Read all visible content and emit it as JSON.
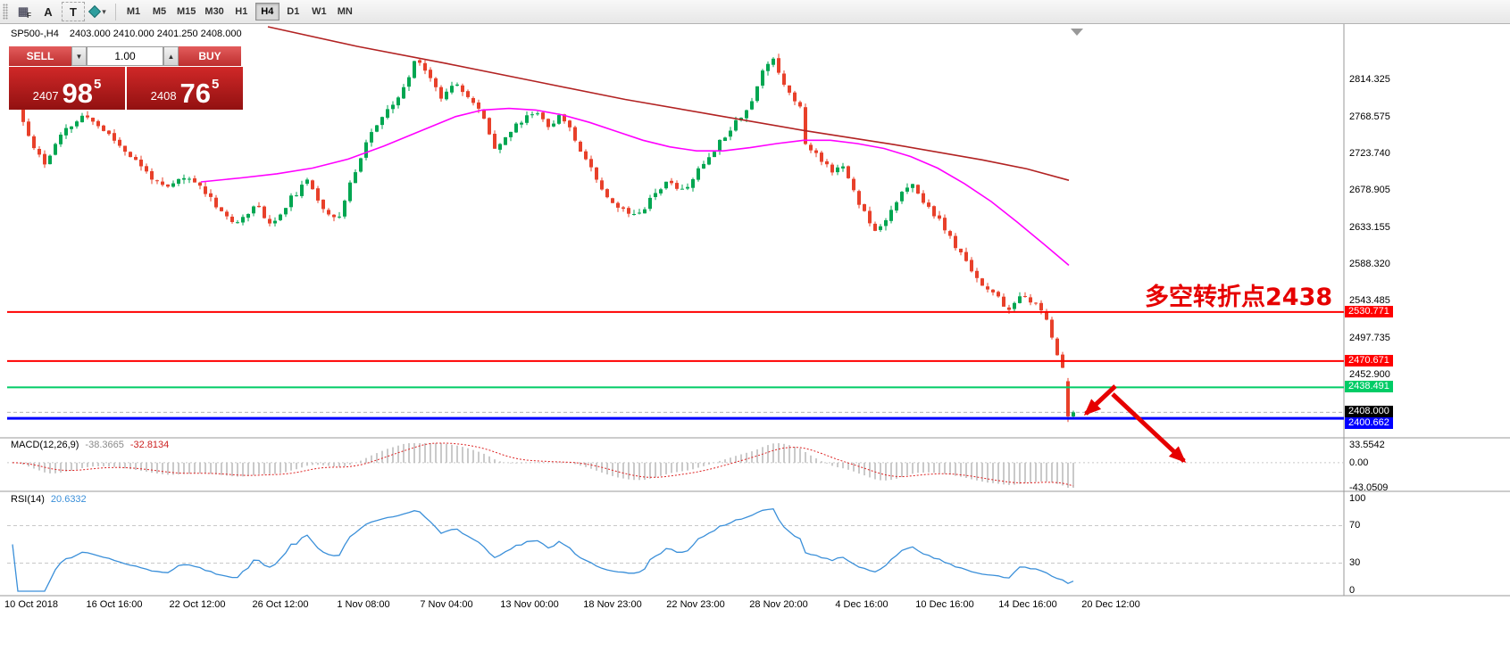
{
  "toolbar": {
    "icons": [
      {
        "name": "pattern-f-icon",
        "glyph": "▦",
        "sub": "F"
      },
      {
        "name": "font-a-icon",
        "glyph": "A"
      },
      {
        "name": "text-label-icon",
        "glyph": "T"
      },
      {
        "name": "shapes-dropdown-icon",
        "glyph": "▾"
      }
    ],
    "timeframes": [
      "M1",
      "M5",
      "M15",
      "M30",
      "H1",
      "H4",
      "D1",
      "W1",
      "MN"
    ],
    "active_timeframe": "H4"
  },
  "chart": {
    "symbol_tf": "SP500-,H4",
    "ohlc_text": "2403.000 2410.000 2401.250 2408.000"
  },
  "trade_panel": {
    "sell_label": "SELL",
    "buy_label": "BUY",
    "lot_value": "1.00",
    "lot_decrease_glyph": "▼",
    "lot_increase_glyph": "▲",
    "sell_price": {
      "prefix": "2407",
      "big": "98",
      "sup": "5"
    },
    "buy_price": {
      "prefix": "2408",
      "big": "76",
      "sup": "5"
    }
  },
  "annotation": {
    "text": "多空转折点2438",
    "color": "#e60000"
  },
  "colors": {
    "bull": "#00a651",
    "bear": "#e8402a",
    "ma_fast": "#ff00ff",
    "ma_slow": "#b22222",
    "macd_hist": "#b4b4b4",
    "macd_signal": "#dd2222",
    "rsi_line": "#3a8fd9",
    "arrow": "#e60000",
    "bid_tag": "#000000"
  },
  "chart_data": {
    "type": "candlestick",
    "symbol": "SP500-",
    "timeframe": "H4",
    "current_ohlc": {
      "open": 2403.0,
      "high": 2410.0,
      "low": 2401.25,
      "close": 2408.0
    },
    "price_scale": {
      "min": 2380,
      "max": 2880
    },
    "y_ticks": [
      2814.325,
      2768.575,
      2723.74,
      2678.905,
      2633.155,
      2588.32,
      2543.485,
      2497.735,
      2452.9
    ],
    "x_labels": [
      "10 Oct 2018",
      "16 Oct 16:00",
      "22 Oct 12:00",
      "26 Oct 12:00",
      "1 Nov 08:00",
      "7 Nov 04:00",
      "13 Nov 00:00",
      "18 Nov 23:00",
      "22 Nov 23:00",
      "28 Nov 20:00",
      "4 Dec 16:00",
      "10 Dec 16:00",
      "14 Dec 16:00",
      "20 Dec 12:00"
    ],
    "levels": [
      {
        "price": 2530.771,
        "label": "2530.771",
        "color": "#ff0000",
        "width": 2
      },
      {
        "price": 2470.671,
        "label": "2470.671",
        "color": "#ff0000",
        "width": 2
      },
      {
        "price": 2438.491,
        "label": "2438.491",
        "color": "#00cc66",
        "width": 2
      },
      {
        "price": 2400.662,
        "label": "2400.662",
        "color": "#0000ff",
        "width": 3
      }
    ],
    "bid": {
      "price": 2408.0,
      "label": "2408.000"
    },
    "price_path": [
      [
        14,
        2795
      ],
      [
        24,
        2768
      ],
      [
        35,
        2739
      ],
      [
        50,
        2712
      ],
      [
        70,
        2750
      ],
      [
        95,
        2772
      ],
      [
        120,
        2750
      ],
      [
        145,
        2723
      ],
      [
        165,
        2701
      ],
      [
        185,
        2680
      ],
      [
        205,
        2696
      ],
      [
        225,
        2685
      ],
      [
        245,
        2658
      ],
      [
        265,
        2636
      ],
      [
        285,
        2664
      ],
      [
        305,
        2636
      ],
      [
        325,
        2669
      ],
      [
        345,
        2691
      ],
      [
        365,
        2653
      ],
      [
        380,
        2647
      ],
      [
        395,
        2696
      ],
      [
        410,
        2739
      ],
      [
        425,
        2766
      ],
      [
        440,
        2783
      ],
      [
        455,
        2810
      ],
      [
        467,
        2845
      ],
      [
        480,
        2820
      ],
      [
        495,
        2793
      ],
      [
        510,
        2815
      ],
      [
        525,
        2793
      ],
      [
        540,
        2772
      ],
      [
        555,
        2731
      ],
      [
        570,
        2750
      ],
      [
        585,
        2766
      ],
      [
        600,
        2777
      ],
      [
        615,
        2759
      ],
      [
        630,
        2772
      ],
      [
        645,
        2739
      ],
      [
        660,
        2712
      ],
      [
        675,
        2680
      ],
      [
        690,
        2661
      ],
      [
        705,
        2651
      ],
      [
        720,
        2657
      ],
      [
        735,
        2680
      ],
      [
        750,
        2691
      ],
      [
        765,
        2678
      ],
      [
        780,
        2701
      ],
      [
        795,
        2723
      ],
      [
        810,
        2745
      ],
      [
        825,
        2766
      ],
      [
        840,
        2783
      ],
      [
        855,
        2828
      ],
      [
        866,
        2843
      ],
      [
        876,
        2813
      ],
      [
        886,
        2798
      ],
      [
        896,
        2780
      ],
      [
        903,
        2731
      ],
      [
        912,
        2726
      ],
      [
        922,
        2715
      ],
      [
        932,
        2705
      ],
      [
        942,
        2711
      ],
      [
        952,
        2690
      ],
      [
        962,
        2664
      ],
      [
        972,
        2646
      ],
      [
        982,
        2629
      ],
      [
        992,
        2646
      ],
      [
        1002,
        2664
      ],
      [
        1012,
        2679
      ],
      [
        1022,
        2685
      ],
      [
        1032,
        2668
      ],
      [
        1042,
        2657
      ],
      [
        1052,
        2642
      ],
      [
        1062,
        2625
      ],
      [
        1072,
        2607
      ],
      [
        1082,
        2592
      ],
      [
        1092,
        2577
      ],
      [
        1102,
        2561
      ],
      [
        1112,
        2553
      ],
      [
        1122,
        2542
      ],
      [
        1132,
        2531
      ],
      [
        1142,
        2550
      ],
      [
        1152,
        2547
      ],
      [
        1162,
        2536
      ],
      [
        1172,
        2521
      ],
      [
        1180,
        2495
      ],
      [
        1186,
        2473
      ],
      [
        1192,
        2456
      ],
      [
        1196,
        2436
      ],
      [
        1202,
        2408
      ]
    ],
    "ma_fast": {
      "color": "#ff00ff",
      "points": [
        [
          225,
          2690
        ],
        [
          270,
          2695
        ],
        [
          310,
          2700
        ],
        [
          350,
          2707
        ],
        [
          390,
          2718
        ],
        [
          430,
          2734
        ],
        [
          470,
          2752
        ],
        [
          510,
          2770
        ],
        [
          540,
          2778
        ],
        [
          570,
          2780
        ],
        [
          600,
          2778
        ],
        [
          630,
          2772
        ],
        [
          660,
          2763
        ],
        [
          690,
          2752
        ],
        [
          720,
          2741
        ],
        [
          750,
          2733
        ],
        [
          780,
          2728
        ],
        [
          810,
          2728
        ],
        [
          840,
          2732
        ],
        [
          870,
          2737
        ],
        [
          900,
          2741
        ],
        [
          930,
          2741
        ],
        [
          960,
          2737
        ],
        [
          990,
          2731
        ],
        [
          1020,
          2721
        ],
        [
          1050,
          2707
        ],
        [
          1080,
          2688
        ],
        [
          1110,
          2666
        ],
        [
          1140,
          2640
        ],
        [
          1170,
          2613
        ],
        [
          1197,
          2588
        ]
      ]
    },
    "ma_slow": {
      "color": "#b22222",
      "points": [
        [
          300,
          2880
        ],
        [
          400,
          2856
        ],
        [
          500,
          2835
        ],
        [
          600,
          2813
        ],
        [
          700,
          2791
        ],
        [
          800,
          2772
        ],
        [
          900,
          2753
        ],
        [
          1000,
          2736
        ],
        [
          1100,
          2717
        ],
        [
          1150,
          2706
        ],
        [
          1197,
          2692
        ]
      ]
    },
    "macd": {
      "label": "MACD(12,26,9)",
      "value_main": "-38.3665",
      "value_signal": "-32.8134",
      "axis_labels": [
        "33.5542",
        "0.00",
        "-43.0509"
      ],
      "axis_values": [
        33.5542,
        0,
        -43.0509
      ],
      "params": [
        12,
        26,
        9
      ]
    },
    "rsi": {
      "label": "RSI(14)",
      "value": "20.6332",
      "period": 14,
      "axis_values": [
        100,
        70,
        30,
        0
      ],
      "levels": [
        70,
        30
      ]
    }
  }
}
